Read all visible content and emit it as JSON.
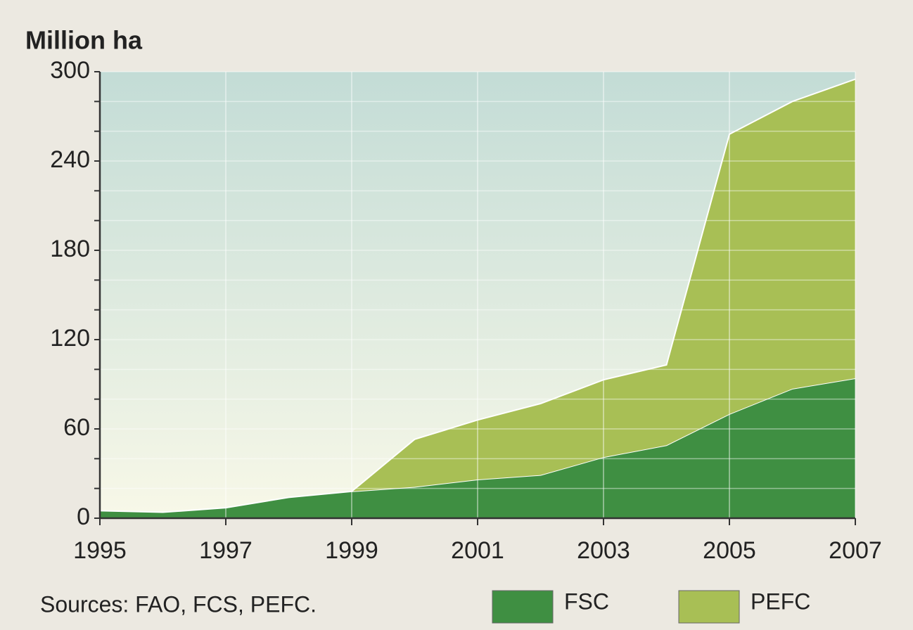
{
  "chart_data": {
    "type": "stacked_area",
    "title": "Million ha",
    "source": "Sources: FAO, FCS, PEFC.",
    "x": [
      1995,
      1996,
      1997,
      1998,
      1999,
      2000,
      2001,
      2002,
      2003,
      2004,
      2005,
      2006,
      2007
    ],
    "series": [
      {
        "name": "FSC",
        "color": "#3f8f42",
        "values": [
          5,
          4,
          7,
          14,
          18,
          21,
          26,
          29,
          41,
          49,
          70,
          87,
          94
        ]
      },
      {
        "name": "PEFC",
        "color": "#a8bf55",
        "values": [
          null,
          null,
          null,
          null,
          0,
          32,
          40,
          48,
          52,
          54,
          188,
          193,
          201
        ]
      }
    ],
    "xlim": [
      1995,
      2007
    ],
    "xticks": [
      1995,
      1997,
      1999,
      2001,
      2003,
      2005,
      2007
    ],
    "ylim": [
      0,
      300
    ],
    "yticks": [
      0,
      60,
      120,
      180,
      240,
      300
    ],
    "ygrid": [
      0,
      20,
      40,
      60,
      80,
      100,
      120,
      140,
      160,
      180,
      200,
      220,
      240,
      260,
      280,
      300
    ],
    "grid": true,
    "legend": "bottom-right"
  }
}
